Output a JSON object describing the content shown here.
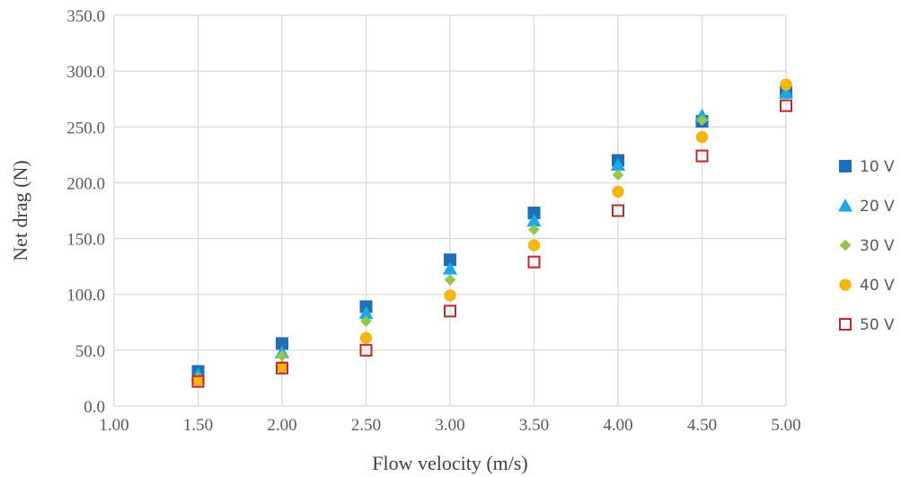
{
  "chart_data": {
    "type": "scatter",
    "title": "",
    "xlabel": "Flow velocity (m/s)",
    "ylabel": "Net drag (N)",
    "xlim": [
      1.0,
      5.0
    ],
    "ylim": [
      0.0,
      350.0
    ],
    "x_ticks": [
      "1.00",
      "1.50",
      "2.00",
      "2.50",
      "3.00",
      "3.50",
      "4.00",
      "4.50",
      "5.00"
    ],
    "y_ticks": [
      "0.0",
      "50.0",
      "100.0",
      "150.0",
      "200.0",
      "250.0",
      "300.0",
      "350.0"
    ],
    "grid": "vertical and horizontal",
    "legend_position": "right",
    "series": [
      {
        "name": "10 V",
        "marker": "square",
        "color": "#1f6fb5",
        "x": [
          1.5,
          2.0,
          2.5,
          3.0,
          3.5,
          4.0,
          4.5,
          5.0
        ],
        "y": [
          31,
          56,
          89,
          131,
          173,
          220,
          255,
          281
        ]
      },
      {
        "name": "20 V",
        "marker": "triangle",
        "color": "#1aa9e6",
        "x": [
          1.5,
          2.0,
          2.5,
          3.0,
          3.5,
          4.0,
          4.5,
          5.0
        ],
        "y": [
          28,
          48,
          83,
          123,
          166,
          216,
          260,
          281
        ]
      },
      {
        "name": "30 V",
        "marker": "diamond",
        "color": "#92c64f",
        "x": [
          1.5,
          2.0,
          2.5,
          3.0,
          3.5,
          4.0,
          4.5,
          5.0
        ],
        "y": [
          25,
          45,
          76,
          113,
          158,
          207,
          256,
          287
        ]
      },
      {
        "name": "40 V",
        "marker": "circle",
        "color": "#f5b50f",
        "x": [
          1.5,
          2.0,
          2.5,
          3.0,
          3.5,
          4.0,
          4.5,
          5.0
        ],
        "y": [
          23,
          35,
          61,
          99,
          144,
          192,
          241,
          288
        ]
      },
      {
        "name": "50 V",
        "marker": "open-square",
        "color": "#c0272d",
        "x": [
          1.5,
          2.0,
          2.5,
          3.0,
          3.5,
          4.0,
          4.5,
          5.0
        ],
        "y": [
          22,
          34,
          50,
          85,
          129,
          175,
          224,
          269
        ]
      }
    ]
  }
}
